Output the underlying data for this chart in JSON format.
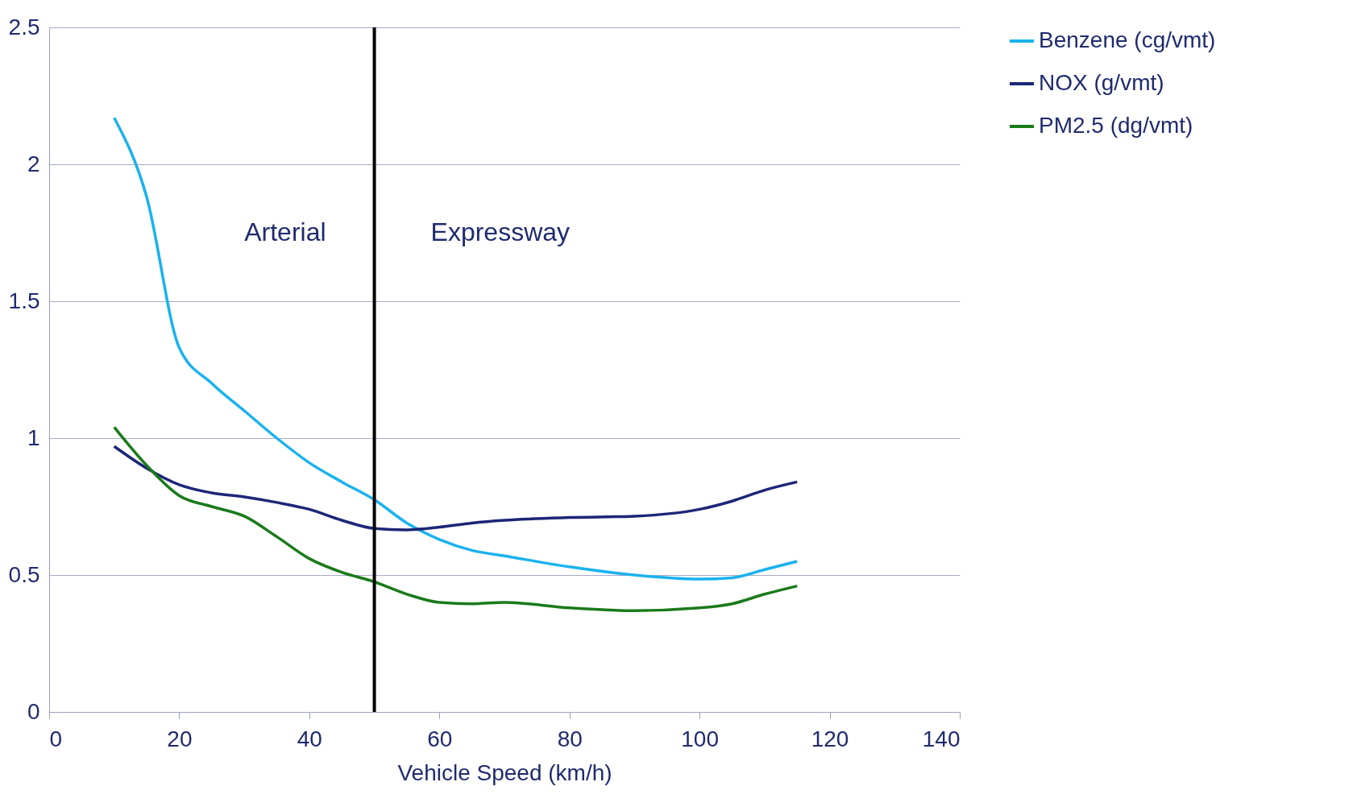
{
  "chart_data": {
    "type": "line",
    "xlabel": "Vehicle Speed (km/h)",
    "xlim": [
      0,
      140
    ],
    "xticks": [
      0,
      20,
      40,
      60,
      80,
      100,
      120,
      140
    ],
    "ylim": [
      0,
      2.5
    ],
    "yticks": [
      0,
      0.5,
      1,
      1.5,
      2,
      2.5
    ],
    "grid": "y",
    "legend": "right",
    "line_style": "solid",
    "marker": "none",
    "x": [
      10,
      15,
      20,
      25,
      30,
      35,
      40,
      45,
      50,
      55,
      60,
      65,
      70,
      80,
      90,
      100,
      105,
      110,
      115
    ],
    "series": [
      {
        "name": "Benzene (cg/vmt)",
        "color": "#1ab2ee",
        "values": [
          2.17,
          1.88,
          1.33,
          1.2,
          1.1,
          1.0,
          0.91,
          0.84,
          0.775,
          0.69,
          0.63,
          0.59,
          0.57,
          0.53,
          0.5,
          0.485,
          0.49,
          0.52,
          0.55
        ]
      },
      {
        "name": "NOX (g/vmt)",
        "color": "#1c2677",
        "values": [
          0.97,
          0.89,
          0.83,
          0.8,
          0.785,
          0.765,
          0.74,
          0.7,
          0.67,
          0.665,
          0.675,
          0.69,
          0.7,
          0.71,
          0.715,
          0.74,
          0.77,
          0.81,
          0.84
        ]
      },
      {
        "name": "PM2.5 (dg/vmt)",
        "color": "#1a7a1a",
        "values": [
          1.04,
          0.9,
          0.79,
          0.75,
          0.715,
          0.64,
          0.56,
          0.51,
          0.475,
          0.43,
          0.4,
          0.395,
          0.4,
          0.38,
          0.37,
          0.38,
          0.395,
          0.43,
          0.46
        ]
      }
    ],
    "ref_lines": [
      {
        "axis": "x",
        "value": 50,
        "color": "#000000",
        "line_style": "solid"
      }
    ],
    "annotations": [
      "Arterial",
      "Expressway"
    ]
  }
}
